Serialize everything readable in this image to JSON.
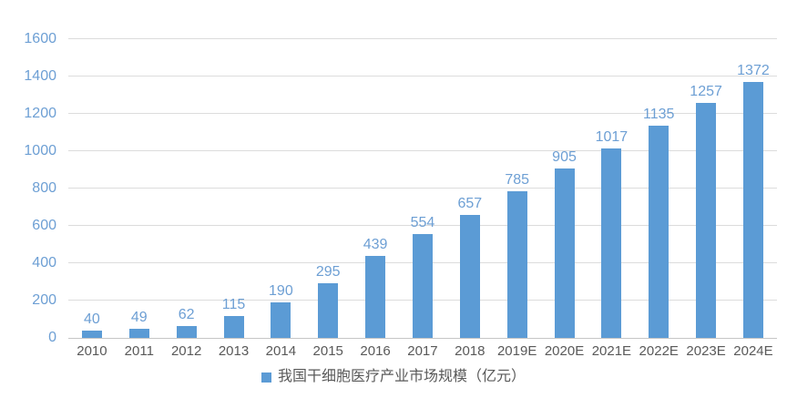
{
  "chart_data": {
    "type": "bar",
    "title": "",
    "categories": [
      "2010",
      "2011",
      "2012",
      "2013",
      "2014",
      "2015",
      "2016",
      "2017",
      "2018",
      "2019E",
      "2020E",
      "2021E",
      "2022E",
      "2023E",
      "2024E"
    ],
    "values": [
      40,
      49,
      62,
      115,
      190,
      295,
      439,
      554,
      657,
      785,
      905,
      1017,
      1135,
      1257,
      1372
    ],
    "value_labels": [
      "40",
      "49",
      "62",
      "115",
      "190",
      "295",
      "439",
      "554",
      "657",
      "785",
      "905",
      "1017",
      "1135",
      "1257",
      "1372"
    ],
    "ylim": [
      0,
      1600
    ],
    "yticks": [
      0,
      200,
      400,
      600,
      800,
      1000,
      1200,
      1400,
      1600
    ],
    "xlabel": "",
    "ylabel": "",
    "grid": true,
    "legend_position": "bottom",
    "legend": "我国干细胞医疗产业市场规模（亿元）",
    "colors": {
      "bar": "#5B9BD5",
      "value_label": "#6D9FD4",
      "y_tick_label": "#6D9FD4",
      "x_tick_label": "#595959",
      "legend_text": "#595959",
      "gridline": "#DCDCDC",
      "axis_line": "#C6C6C6"
    }
  }
}
